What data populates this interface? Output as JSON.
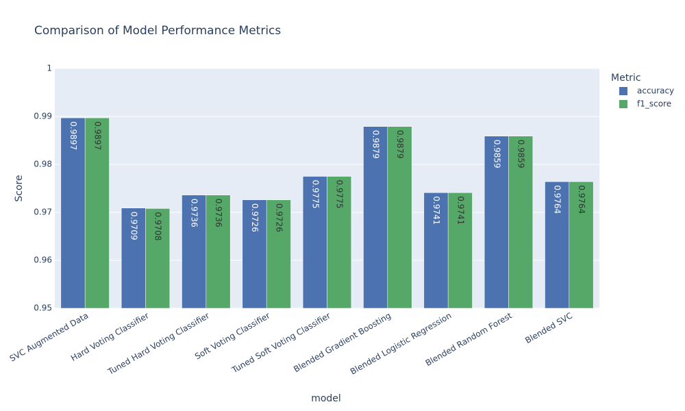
{
  "chart_data": {
    "type": "bar",
    "title": "Comparison of Model Performance Metrics",
    "x_label": "model",
    "y_label": "Score",
    "legend_title": "Metric",
    "categories": [
      "SVC Augmented Data",
      "Hard Voting Classifier",
      "Tuned Hard Voting Classifier",
      "Soft Voting Classifier",
      "Tuned Soft Voting Classifier",
      "Blended Gradient Boosting",
      "Blended Logistic Regression",
      "Blended Random Forest",
      "Blended SVC"
    ],
    "series": [
      {
        "name": "accuracy",
        "color": "#4c72b0",
        "values": [
          0.9897,
          0.9709,
          0.9736,
          0.9726,
          0.9775,
          0.9879,
          0.9741,
          0.9859,
          0.9764
        ]
      },
      {
        "name": "f1_score",
        "color": "#55a868",
        "values": [
          0.9897,
          0.9708,
          0.9736,
          0.9726,
          0.9775,
          0.9879,
          0.9741,
          0.9859,
          0.9764
        ]
      }
    ],
    "ylim": [
      0.95,
      1
    ],
    "yticks": [
      0.95,
      0.96,
      0.97,
      0.98,
      0.99,
      1
    ],
    "grid": true,
    "legend": "right"
  }
}
